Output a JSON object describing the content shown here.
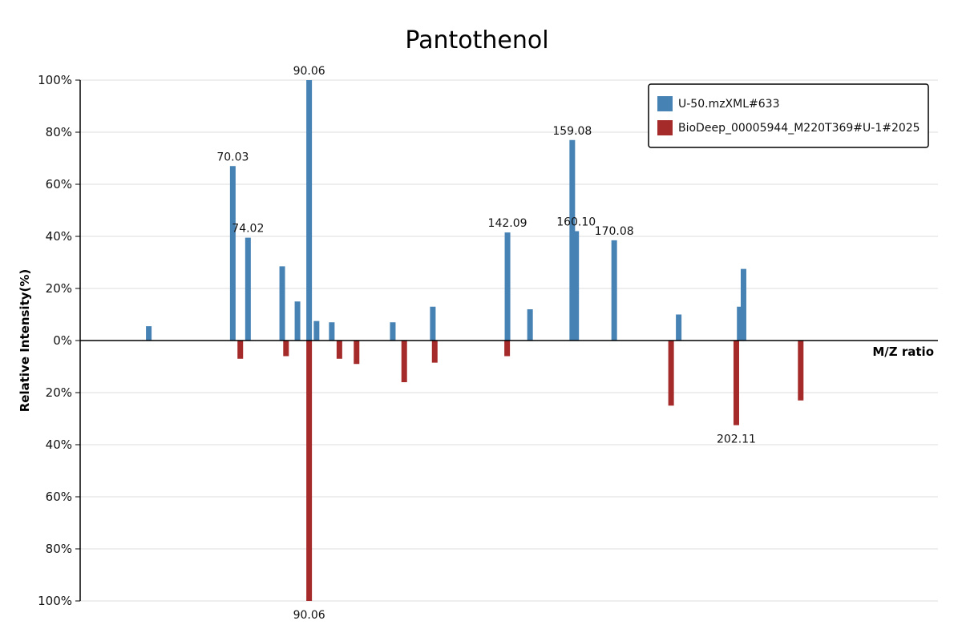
{
  "chart_data": {
    "type": "bar",
    "title": "Pantothenol",
    "xlabel": "M/Z ratio",
    "ylabel": "Relative Intensity(%)",
    "ylim": [
      -100,
      100
    ],
    "y_ticks": [
      "100%",
      "80%",
      "60%",
      "40%",
      "20%",
      "0%",
      "20%",
      "40%",
      "60%",
      "80%",
      "100%"
    ],
    "xlim": [
      30,
      255
    ],
    "grid": true,
    "legend_position": "top-right",
    "series": [
      {
        "name": "U-50.mzXML#633",
        "color": "#4682b4",
        "direction": "up",
        "points": [
          {
            "mz": 48.0,
            "intensity": 5.5
          },
          {
            "mz": 70.03,
            "intensity": 67,
            "label": "70.03"
          },
          {
            "mz": 74.02,
            "intensity": 39.5,
            "label": "74.02"
          },
          {
            "mz": 83.0,
            "intensity": 28.5
          },
          {
            "mz": 87.0,
            "intensity": 15
          },
          {
            "mz": 90.06,
            "intensity": 100,
            "label": "90.06"
          },
          {
            "mz": 92.0,
            "intensity": 7.5
          },
          {
            "mz": 96.0,
            "intensity": 7
          },
          {
            "mz": 112.0,
            "intensity": 7
          },
          {
            "mz": 122.5,
            "intensity": 13
          },
          {
            "mz": 142.09,
            "intensity": 41.5,
            "label": "142.09"
          },
          {
            "mz": 148.0,
            "intensity": 12
          },
          {
            "mz": 159.08,
            "intensity": 77,
            "label": "159.08"
          },
          {
            "mz": 160.1,
            "intensity": 42,
            "label": "160.10"
          },
          {
            "mz": 170.08,
            "intensity": 38.5,
            "label": "170.08"
          },
          {
            "mz": 187.0,
            "intensity": 10
          },
          {
            "mz": 203.0,
            "intensity": 13
          },
          {
            "mz": 204.0,
            "intensity": 27.5
          }
        ]
      },
      {
        "name": "BioDeep_00005944_M220T369#U-1#2025",
        "color": "#a52a2a",
        "direction": "down",
        "points": [
          {
            "mz": 72.0,
            "intensity": 7
          },
          {
            "mz": 84.0,
            "intensity": 6
          },
          {
            "mz": 90.06,
            "intensity": 100,
            "label": "90.06"
          },
          {
            "mz": 98.0,
            "intensity": 7
          },
          {
            "mz": 102.5,
            "intensity": 9
          },
          {
            "mz": 115.0,
            "intensity": 16
          },
          {
            "mz": 123.0,
            "intensity": 8.5
          },
          {
            "mz": 142.0,
            "intensity": 6
          },
          {
            "mz": 185.0,
            "intensity": 25
          },
          {
            "mz": 202.11,
            "intensity": 32.5,
            "label": "202.11"
          },
          {
            "mz": 219.0,
            "intensity": 23
          }
        ]
      }
    ]
  }
}
